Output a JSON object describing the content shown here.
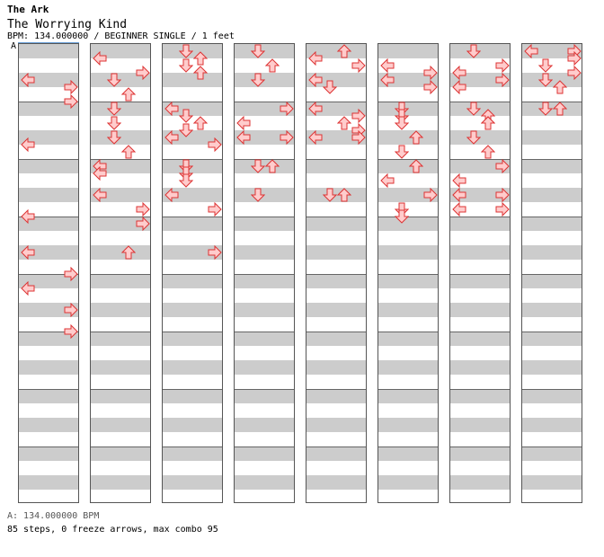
{
  "header": {
    "title": "The Ark",
    "subtitle": "The Worrying Kind",
    "info": "BPM: 134.000000 / BEGINNER SINGLE / 1 feet",
    "bpm_marker": "A"
  },
  "footer": {
    "bpm_legend": "A: 134.000000 BPM",
    "stats": "85 steps, 0 freeze arrows, max combo 95"
  },
  "colors": {
    "arrow_fill": "#ffcccc",
    "arrow_stroke": "#dd3333",
    "band": "#cccccc",
    "bpm_marker_line": "#6aa0d8"
  },
  "notes": [
    [
      [
        0,
        4,
        "L"
      ],
      [
        0,
        5,
        "R"
      ],
      [
        0,
        7,
        "R"
      ],
      [
        1,
        5,
        "L"
      ],
      [
        2,
        7,
        "L"
      ],
      [
        3,
        4,
        "L"
      ],
      [
        3,
        7,
        "R"
      ],
      [
        4,
        1,
        "L"
      ],
      [
        4,
        4,
        "R"
      ],
      [
        4,
        7,
        "R"
      ]
    ],
    [
      [
        0,
        1,
        "L"
      ],
      [
        0,
        3,
        "R"
      ],
      [
        0,
        4,
        "D"
      ],
      [
        0,
        6,
        "U"
      ],
      [
        1,
        0,
        "D"
      ],
      [
        1,
        2,
        "D"
      ],
      [
        1,
        4,
        "D"
      ],
      [
        1,
        6,
        "U"
      ],
      [
        2,
        0,
        "L"
      ],
      [
        2,
        0,
        "L"
      ],
      [
        2,
        4,
        "L"
      ],
      [
        2,
        6,
        "R"
      ],
      [
        3,
        0,
        "R"
      ],
      [
        3,
        4,
        "U"
      ]
    ],
    [
      [
        0,
        0,
        "D"
      ],
      [
        0,
        1,
        "U"
      ],
      [
        0,
        2,
        "D"
      ],
      [
        0,
        3,
        "U"
      ],
      [
        1,
        0,
        "L"
      ],
      [
        1,
        1,
        "D"
      ],
      [
        1,
        2,
        "U"
      ],
      [
        1,
        3,
        "D"
      ],
      [
        1,
        4,
        "L"
      ],
      [
        1,
        5,
        "R"
      ],
      [
        2,
        0,
        "D"
      ],
      [
        2,
        0,
        "D"
      ],
      [
        2,
        0,
        "D"
      ],
      [
        2,
        4,
        "L"
      ],
      [
        2,
        6,
        "R"
      ],
      [
        3,
        4,
        "R"
      ]
    ],
    [
      [
        0,
        0,
        "D"
      ],
      [
        0,
        2,
        "U"
      ],
      [
        0,
        4,
        "D"
      ],
      [
        1,
        0,
        "R"
      ],
      [
        1,
        2,
        "L"
      ],
      [
        1,
        4,
        "L"
      ],
      [
        1,
        4,
        "R"
      ],
      [
        2,
        0,
        "D"
      ],
      [
        2,
        0,
        "U"
      ],
      [
        2,
        4,
        "D"
      ]
    ],
    [
      [
        0,
        0,
        "U"
      ],
      [
        0,
        1,
        "L"
      ],
      [
        0,
        2,
        "R"
      ],
      [
        0,
        4,
        "L"
      ],
      [
        0,
        5,
        "D"
      ],
      [
        1,
        0,
        "L"
      ],
      [
        1,
        1,
        "R"
      ],
      [
        1,
        2,
        "U"
      ],
      [
        1,
        3,
        "R"
      ],
      [
        1,
        4,
        "L"
      ],
      [
        1,
        4,
        "R"
      ],
      [
        2,
        4,
        "D"
      ],
      [
        2,
        4,
        "U"
      ]
    ],
    [
      [
        0,
        2,
        "L"
      ],
      [
        0,
        3,
        "R"
      ],
      [
        0,
        4,
        "L"
      ],
      [
        0,
        5,
        "R"
      ],
      [
        1,
        0,
        "D"
      ],
      [
        1,
        1,
        "D"
      ],
      [
        1,
        2,
        "D"
      ],
      [
        1,
        4,
        "U"
      ],
      [
        1,
        6,
        "D"
      ],
      [
        2,
        0,
        "U"
      ],
      [
        2,
        2,
        "L"
      ],
      [
        2,
        4,
        "R"
      ],
      [
        2,
        6,
        "D"
      ],
      [
        2,
        6,
        "D"
      ]
    ],
    [
      [
        0,
        0,
        "D"
      ],
      [
        0,
        2,
        "R"
      ],
      [
        0,
        3,
        "L"
      ],
      [
        0,
        4,
        "R"
      ],
      [
        0,
        5,
        "L"
      ],
      [
        1,
        0,
        "D"
      ],
      [
        1,
        1,
        "U"
      ],
      [
        1,
        1,
        "U"
      ],
      [
        1,
        2,
        "U"
      ],
      [
        1,
        4,
        "D"
      ],
      [
        1,
        6,
        "U"
      ],
      [
        2,
        0,
        "R"
      ],
      [
        2,
        2,
        "L"
      ],
      [
        2,
        4,
        "L"
      ],
      [
        2,
        4,
        "R"
      ],
      [
        2,
        6,
        "L"
      ],
      [
        2,
        6,
        "R"
      ]
    ],
    [
      [
        0,
        0,
        "L"
      ],
      [
        0,
        0,
        "R"
      ],
      [
        0,
        1,
        "R"
      ],
      [
        0,
        2,
        "D"
      ],
      [
        0,
        3,
        "R"
      ],
      [
        0,
        4,
        "D"
      ],
      [
        0,
        5,
        "U"
      ],
      [
        1,
        0,
        "D"
      ],
      [
        1,
        0,
        "U"
      ]
    ]
  ]
}
